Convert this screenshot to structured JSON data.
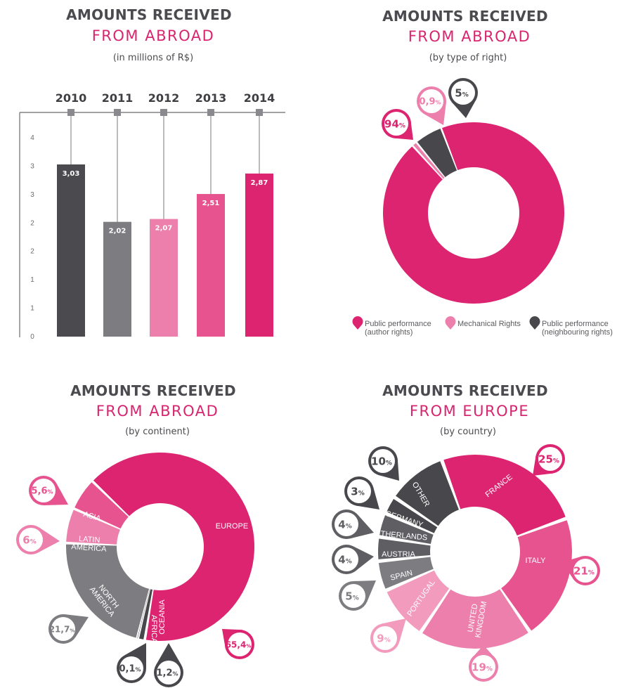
{
  "colors": {
    "dark": "#4b4b4f",
    "magenta": "#dc2470",
    "pink": "#e6538e",
    "light_pink": "#ec7fab",
    "gray": "#7d7d81",
    "dark_gray": "#48484c"
  },
  "panels": {
    "p1": {
      "title": "AMOUNTS RECEIVED",
      "title2": "FROM ABROAD",
      "subtitle": "(in millions of R$)"
    },
    "p2": {
      "title": "AMOUNTS RECEIVED",
      "title2": "FROM ABROAD",
      "subtitle": "(by type of right)"
    },
    "p3": {
      "title": "AMOUNTS RECEIVED",
      "title2": "FROM ABROAD",
      "subtitle": "(by continent)"
    },
    "p4": {
      "title": "AMOUNTS RECEIVED",
      "title2": "FROM EUROPE",
      "subtitle": "(by country)"
    }
  },
  "chart_data": [
    {
      "type": "bar",
      "title": "AMOUNTS RECEIVED FROM ABROAD",
      "subtitle": "(in millions of R$)",
      "categories": [
        "2010",
        "2011",
        "2012",
        "2013",
        "2014"
      ],
      "values": [
        3.03,
        2.02,
        2.07,
        2.51,
        2.87
      ],
      "value_labels": [
        "3,03",
        "2,02",
        "2,07",
        "2,51",
        "2,87"
      ],
      "bar_colors": [
        "#4b4b4f",
        "#7d7d81",
        "#ec7fab",
        "#e6538e",
        "#dc2470"
      ],
      "ylim": [
        0,
        3.5
      ],
      "yticks": [
        0,
        0.5,
        1,
        1.5,
        2,
        2.5,
        3,
        3.5
      ],
      "ytick_labels": [
        "0",
        "1",
        "1",
        "2",
        "2",
        "3",
        "3",
        "4"
      ]
    },
    {
      "type": "pie",
      "title": "AMOUNTS RECEIVED FROM ABROAD",
      "subtitle": "(by type of right)",
      "slices": [
        {
          "name": "Public performance (author rights)",
          "value": 94,
          "label": "94",
          "color": "#dc2470"
        },
        {
          "name": "Mechanical Rights",
          "value": 0.9,
          "label": "0,9",
          "color": "#ec7fab"
        },
        {
          "name": "Public performance (neighbouring rights)",
          "value": 5,
          "label": "5",
          "color": "#48484c"
        }
      ],
      "legend": [
        {
          "line1": "Public performance",
          "line2": "(author rights)",
          "color": "#dc2470"
        },
        {
          "line1": "Mechanical Rights",
          "line2": "",
          "color": "#ec7fab"
        },
        {
          "line1": "Public performance",
          "line2": "(neighbouring rights)",
          "color": "#48484c"
        }
      ]
    },
    {
      "type": "pie",
      "title": "AMOUNTS RECEIVED FROM ABROAD",
      "subtitle": "(by continent)",
      "slices": [
        {
          "name": "EUROPE",
          "value": 65.4,
          "label": "65,4",
          "color": "#dc2470"
        },
        {
          "name": "OCEANIA",
          "value": 1.2,
          "label": "1,2",
          "color": "#48484c"
        },
        {
          "name": "AFRICA",
          "value": 0.1,
          "label": "0,1",
          "color": "#48484c"
        },
        {
          "name": "NORTH AMERICA",
          "value": 21.7,
          "label": "21,7",
          "color": "#7d7d81"
        },
        {
          "name": "LATIN AMERICA",
          "value": 6,
          "label": "6",
          "color": "#ec7fab"
        },
        {
          "name": "ASIA",
          "value": 5.6,
          "label": "5,6",
          "color": "#e6538e"
        }
      ]
    },
    {
      "type": "pie",
      "title": "AMOUNTS RECEIVED FROM EUROPE",
      "subtitle": "(by country)",
      "slices": [
        {
          "name": "FRANCE",
          "value": 25,
          "label": "25",
          "color": "#dc2470"
        },
        {
          "name": "ITALY",
          "value": 21,
          "label": "21",
          "color": "#e6538e"
        },
        {
          "name": "UNITED KINGDOM",
          "value": 19,
          "label": "19",
          "color": "#ec7fab"
        },
        {
          "name": "PORTUGAL",
          "value": 9,
          "label": "9",
          "color": "#f39bbd"
        },
        {
          "name": "SPAIN",
          "value": 5,
          "label": "5",
          "color": "#7d7d81"
        },
        {
          "name": "AUSTRIA",
          "value": 4,
          "label": "4",
          "color": "#5f5f63"
        },
        {
          "name": "NETHERLANDS",
          "value": 4,
          "label": "4",
          "color": "#5f5f63"
        },
        {
          "name": "GERMANY",
          "value": 3,
          "label": "3",
          "color": "#48484c"
        },
        {
          "name": "OTHER",
          "value": 10,
          "label": "10",
          "color": "#48484c"
        }
      ]
    }
  ]
}
